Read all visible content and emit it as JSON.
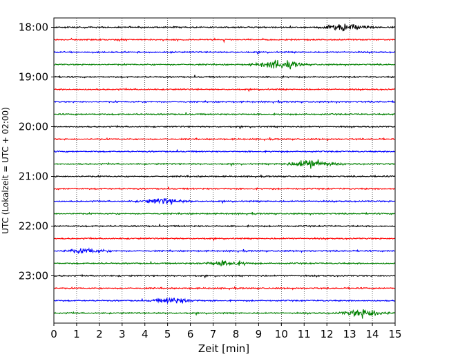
{
  "chart_data": {
    "type": "line",
    "title": "",
    "xlabel": "Zeit  [min]",
    "ylabel": "UTC (Lokalzeit = UTC + 02:00)",
    "xlim": [
      0,
      15
    ],
    "xticks": [
      "0",
      "1",
      "2",
      "3",
      "4",
      "5",
      "6",
      "7",
      "8",
      "9",
      "10",
      "11",
      "12",
      "13",
      "14",
      "15"
    ],
    "yticks": [
      "18:00",
      "19:00",
      "20:00",
      "21:00",
      "22:00",
      "23:00"
    ],
    "trace_start_times": [
      "18:00",
      "18:15",
      "18:30",
      "18:45",
      "19:00",
      "19:15",
      "19:30",
      "19:45",
      "20:00",
      "20:15",
      "20:30",
      "20:45",
      "21:00",
      "21:15",
      "21:30",
      "21:45",
      "22:00",
      "22:15",
      "22:30",
      "22:45",
      "23:00",
      "23:15",
      "23:30",
      "23:45"
    ],
    "trace_color_cycle": [
      "#000000",
      "#ff0000",
      "#0000ff",
      "#008000"
    ],
    "grid": "vertical dotted at each minute",
    "note_events": [
      {
        "trace": 0,
        "center_min": 12.8,
        "strength": 0.9
      },
      {
        "trace": 3,
        "center_min": 9.9,
        "strength": 1.0
      },
      {
        "trace": 11,
        "center_min": 11.3,
        "strength": 1.0
      },
      {
        "trace": 14,
        "center_min": 4.8,
        "strength": 0.6
      },
      {
        "trace": 18,
        "center_min": 1.4,
        "strength": 0.5
      },
      {
        "trace": 19,
        "center_min": 7.6,
        "strength": 0.6
      },
      {
        "trace": 22,
        "center_min": 5.3,
        "strength": 0.6
      },
      {
        "trace": 23,
        "center_min": 13.7,
        "strength": 1.0
      }
    ]
  }
}
